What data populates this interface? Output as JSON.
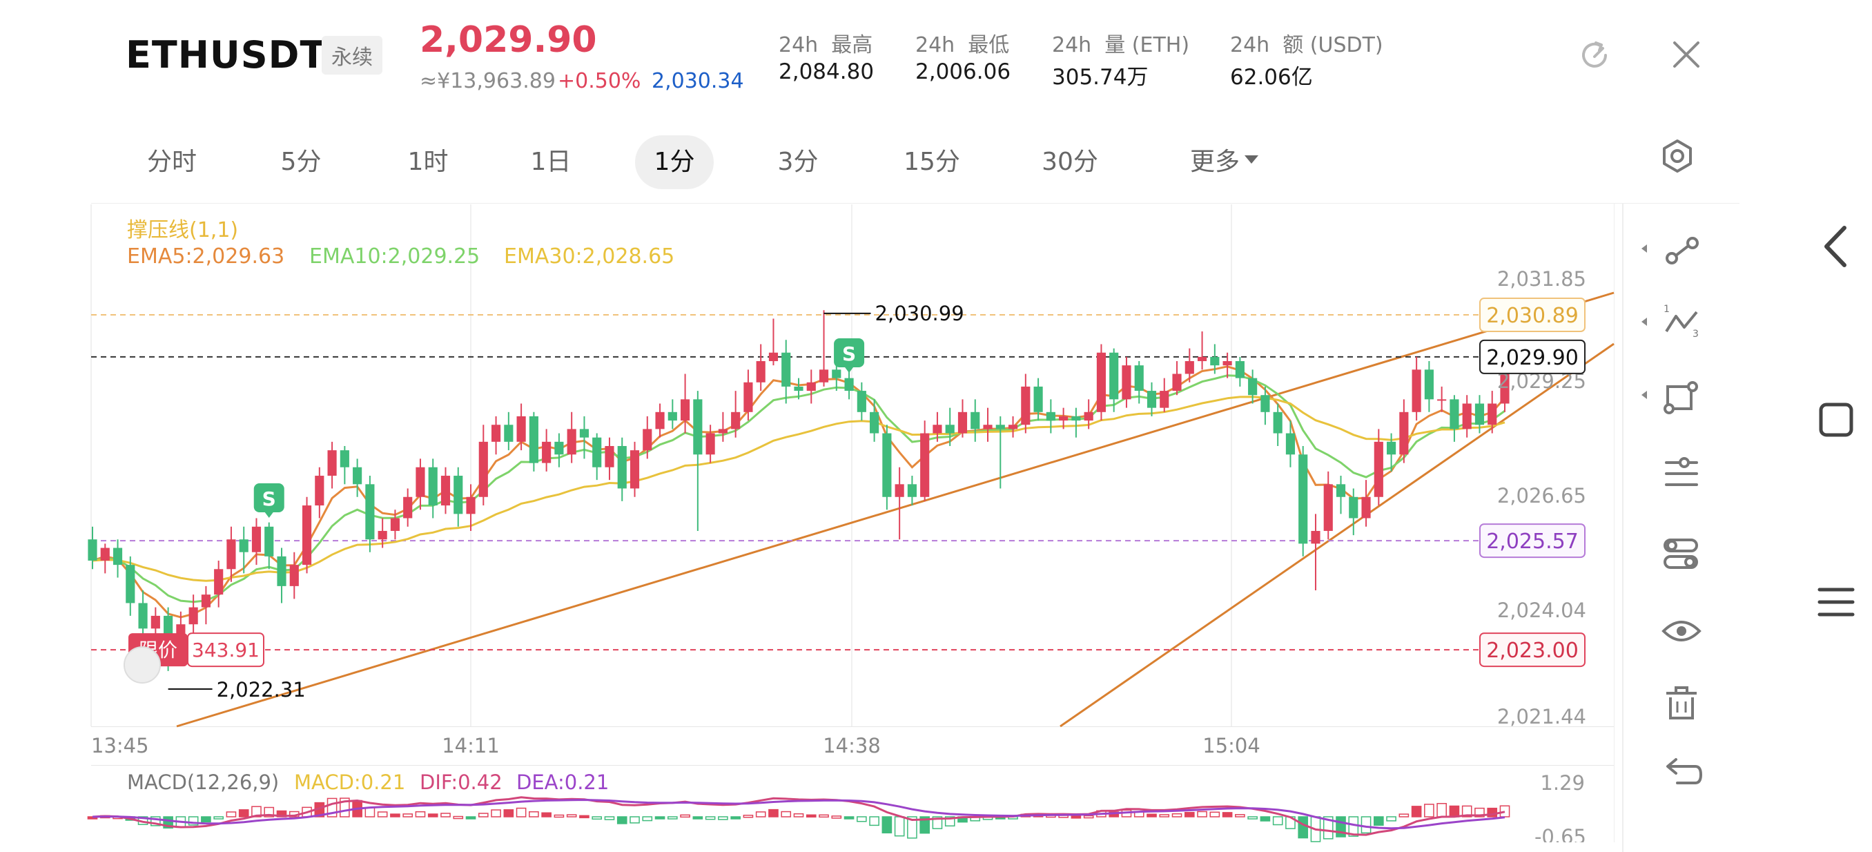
{
  "header": {
    "symbol": "ETHUSDT",
    "contract_type": "永续",
    "last_price": "2,029.90",
    "cny_price": "≈¥13,963.89",
    "change_pct": "+0.50%",
    "mark_price": "2,030.34",
    "stats": [
      {
        "label": "24h  最高",
        "value": "2,084.80"
      },
      {
        "label": "24h  最低",
        "value": "2,006.06"
      },
      {
        "label": "24h  量 (ETH)",
        "value": "305.74万"
      },
      {
        "label": "24h  额 (USDT)",
        "value": "62.06亿"
      }
    ]
  },
  "tabs": [
    {
      "label": "分时",
      "active": false
    },
    {
      "label": "5分",
      "active": false
    },
    {
      "label": "1时",
      "active": false
    },
    {
      "label": "1日",
      "active": false
    },
    {
      "label": "1分",
      "active": true
    },
    {
      "label": "3分",
      "active": false
    },
    {
      "label": "15分",
      "active": false
    },
    {
      "label": "30分",
      "active": false
    },
    {
      "label": "更多",
      "active": false
    }
  ],
  "indicators": {
    "support_resistance": "撑压线(1,1)",
    "ema5": "EMA5:2,029.63",
    "ema10": "EMA10:2,029.25",
    "ema30": "EMA30:2,028.65",
    "macd_params": "MACD(12,26,9)",
    "macd": "MACD:0.21",
    "dif": "DIF:0.42",
    "dea": "DEA:0.21"
  },
  "chart_data": {
    "type": "candlestick",
    "price_axis": [
      "2,031.85",
      "2,029.25",
      "2,026.65",
      "2,024.04",
      "2,021.44"
    ],
    "time_axis": [
      "13:45",
      "14:11",
      "14:38",
      "15:04"
    ],
    "macd_axis": [
      "1.29",
      "-0.65"
    ],
    "ylim": [
      2021.44,
      2031.85
    ],
    "price_tags": {
      "alert_high": "2,030.89",
      "last": "2,029.90",
      "alert_mid": "2,025.57",
      "limit_line": "2,023.00"
    },
    "annotations": {
      "high": "2,030.99",
      "low": "2,022.31",
      "signal": "S"
    },
    "limit_order": {
      "label": "限价",
      "qty": "343.91"
    },
    "candles": [
      [
        2025.6,
        2025.1,
        2025.9,
        2024.9
      ],
      [
        2025.1,
        2025.4,
        2025.5,
        2024.8
      ],
      [
        2025.4,
        2025.0,
        2025.6,
        2024.7
      ],
      [
        2025.0,
        2024.1,
        2025.2,
        2023.8
      ],
      [
        2024.1,
        2023.5,
        2024.4,
        2023.2
      ],
      [
        2023.5,
        2023.8,
        2024.0,
        2023.3
      ],
      [
        2023.8,
        2023.2,
        2024.0,
        2022.5
      ],
      [
        2023.2,
        2023.6,
        2023.9,
        2022.9
      ],
      [
        2023.6,
        2024.0,
        2024.3,
        2023.3
      ],
      [
        2024.0,
        2024.3,
        2024.5,
        2023.6
      ],
      [
        2024.3,
        2024.9,
        2025.1,
        2024.0
      ],
      [
        2024.9,
        2025.6,
        2025.9,
        2024.6
      ],
      [
        2025.6,
        2025.3,
        2025.9,
        2024.8
      ],
      [
        2025.3,
        2025.9,
        2026.1,
        2025.0
      ],
      [
        2025.9,
        2025.2,
        2026.0,
        2024.9
      ],
      [
        2025.2,
        2024.5,
        2025.4,
        2024.1
      ],
      [
        2024.5,
        2025.0,
        2025.3,
        2024.2
      ],
      [
        2025.0,
        2026.4,
        2026.6,
        2024.8
      ],
      [
        2026.4,
        2027.1,
        2027.3,
        2026.1
      ],
      [
        2027.1,
        2027.7,
        2027.9,
        2026.8
      ],
      [
        2027.7,
        2027.3,
        2027.8,
        2026.9
      ],
      [
        2027.3,
        2026.9,
        2027.5,
        2026.6
      ],
      [
        2026.9,
        2025.6,
        2027.1,
        2025.3
      ],
      [
        2025.6,
        2025.8,
        2026.1,
        2025.4
      ],
      [
        2025.8,
        2026.1,
        2026.3,
        2025.6
      ],
      [
        2026.1,
        2026.6,
        2026.8,
        2025.9
      ],
      [
        2026.6,
        2027.3,
        2027.5,
        2026.3
      ],
      [
        2027.3,
        2026.4,
        2027.5,
        2026.1
      ],
      [
        2026.4,
        2027.1,
        2027.3,
        2026.2
      ],
      [
        2027.1,
        2026.2,
        2027.3,
        2025.9
      ],
      [
        2026.2,
        2026.6,
        2026.9,
        2025.8
      ],
      [
        2026.6,
        2027.9,
        2028.3,
        2026.4
      ],
      [
        2027.9,
        2028.3,
        2028.5,
        2027.6
      ],
      [
        2028.3,
        2027.9,
        2028.6,
        2027.7
      ],
      [
        2027.9,
        2028.5,
        2028.8,
        2027.7
      ],
      [
        2028.5,
        2027.4,
        2028.6,
        2027.2
      ],
      [
        2027.4,
        2027.9,
        2028.2,
        2027.2
      ],
      [
        2027.9,
        2027.6,
        2028.1,
        2027.3
      ],
      [
        2027.6,
        2028.2,
        2028.6,
        2027.4
      ],
      [
        2028.2,
        2028.0,
        2028.5,
        2027.5
      ],
      [
        2028.0,
        2027.3,
        2028.1,
        2027.0
      ],
      [
        2027.3,
        2027.8,
        2028.0,
        2027.0
      ],
      [
        2027.8,
        2026.8,
        2028.0,
        2026.5
      ],
      [
        2026.8,
        2027.7,
        2027.9,
        2026.6
      ],
      [
        2027.7,
        2028.2,
        2028.5,
        2027.5
      ],
      [
        2028.2,
        2028.6,
        2028.8,
        2028.0
      ],
      [
        2028.6,
        2028.4,
        2028.9,
        2028.2
      ],
      [
        2028.4,
        2028.9,
        2029.5,
        2028.1
      ],
      [
        2028.9,
        2027.6,
        2029.1,
        2025.8
      ],
      [
        2027.6,
        2028.1,
        2028.3,
        2027.4
      ],
      [
        2028.1,
        2028.2,
        2028.6,
        2027.9
      ],
      [
        2028.2,
        2028.6,
        2029.1,
        2028.0
      ],
      [
        2028.6,
        2029.3,
        2029.6,
        2028.4
      ],
      [
        2029.3,
        2029.8,
        2030.2,
        2029.1
      ],
      [
        2029.8,
        2030.0,
        2030.8,
        2029.7
      ],
      [
        2030.0,
        2029.2,
        2030.3,
        2028.8
      ],
      [
        2029.2,
        2029.1,
        2029.4,
        2028.9
      ],
      [
        2029.1,
        2029.3,
        2029.6,
        2028.8
      ],
      [
        2029.3,
        2029.6,
        2031.0,
        2029.2
      ],
      [
        2029.6,
        2029.4,
        2030.0,
        2029.1
      ],
      [
        2029.4,
        2029.1,
        2029.6,
        2028.9
      ],
      [
        2029.1,
        2028.6,
        2029.3,
        2028.4
      ],
      [
        2028.6,
        2028.1,
        2028.9,
        2027.9
      ],
      [
        2028.1,
        2026.6,
        2028.3,
        2026.3
      ],
      [
        2026.6,
        2026.9,
        2027.3,
        2025.6
      ],
      [
        2026.9,
        2026.6,
        2027.1,
        2026.4
      ],
      [
        2026.6,
        2028.1,
        2028.4,
        2026.5
      ],
      [
        2028.1,
        2028.3,
        2028.6,
        2027.9
      ],
      [
        2028.3,
        2028.1,
        2028.7,
        2027.8
      ],
      [
        2028.1,
        2028.6,
        2028.9,
        2028.0
      ],
      [
        2028.6,
        2028.2,
        2028.9,
        2027.9
      ],
      [
        2028.2,
        2028.3,
        2028.7,
        2027.9
      ],
      [
        2028.3,
        2028.2,
        2028.5,
        2026.8
      ],
      [
        2028.2,
        2028.3,
        2028.5,
        2028.0
      ],
      [
        2028.3,
        2029.2,
        2029.5,
        2028.1
      ],
      [
        2029.2,
        2028.6,
        2029.4,
        2028.4
      ],
      [
        2028.6,
        2028.4,
        2028.9,
        2028.1
      ],
      [
        2028.4,
        2028.5,
        2028.7,
        2028.2
      ],
      [
        2028.5,
        2028.4,
        2028.7,
        2028.0
      ],
      [
        2028.4,
        2028.6,
        2028.9,
        2028.2
      ],
      [
        2028.6,
        2030.0,
        2030.2,
        2028.4
      ],
      [
        2030.0,
        2028.9,
        2030.1,
        2028.6
      ],
      [
        2028.9,
        2029.7,
        2029.9,
        2028.7
      ],
      [
        2029.7,
        2029.1,
        2029.8,
        2028.8
      ],
      [
        2029.1,
        2028.7,
        2029.3,
        2028.5
      ],
      [
        2028.7,
        2029.1,
        2029.4,
        2028.6
      ],
      [
        2029.1,
        2029.5,
        2029.8,
        2029.0
      ],
      [
        2029.5,
        2029.8,
        2030.1,
        2029.3
      ],
      [
        2029.8,
        2029.9,
        2030.5,
        2029.6
      ],
      [
        2029.9,
        2029.7,
        2030.2,
        2029.5
      ],
      [
        2029.7,
        2029.8,
        2030.0,
        2029.4
      ],
      [
        2029.8,
        2029.4,
        2029.9,
        2029.2
      ],
      [
        2029.4,
        2029.0,
        2029.6,
        2028.8
      ],
      [
        2029.0,
        2028.6,
        2029.2,
        2028.3
      ],
      [
        2028.6,
        2028.1,
        2028.8,
        2027.8
      ],
      [
        2028.1,
        2027.6,
        2028.4,
        2027.3
      ],
      [
        2027.6,
        2025.5,
        2027.8,
        2025.2
      ],
      [
        2025.5,
        2025.8,
        2026.2,
        2024.4
      ],
      [
        2025.8,
        2026.9,
        2027.2,
        2025.6
      ],
      [
        2026.9,
        2026.6,
        2027.1,
        2026.2
      ],
      [
        2026.6,
        2026.1,
        2026.8,
        2025.7
      ],
      [
        2026.1,
        2026.6,
        2027.0,
        2025.9
      ],
      [
        2026.6,
        2027.9,
        2028.2,
        2026.4
      ],
      [
        2027.9,
        2027.6,
        2028.1,
        2027.2
      ],
      [
        2027.6,
        2028.6,
        2028.9,
        2027.4
      ],
      [
        2028.6,
        2029.6,
        2029.9,
        2028.4
      ],
      [
        2029.6,
        2028.9,
        2029.8,
        2028.6
      ],
      [
        2028.9,
        2028.9,
        2029.2,
        2028.6
      ],
      [
        2028.9,
        2028.2,
        2029.0,
        2027.9
      ],
      [
        2028.2,
        2028.8,
        2029.0,
        2028.0
      ],
      [
        2028.8,
        2028.3,
        2029.0,
        2028.1
      ],
      [
        2028.3,
        2028.8,
        2029.1,
        2028.1
      ],
      [
        2028.8,
        2029.6,
        2029.8,
        2028.6
      ]
    ]
  },
  "toolbar": {
    "tools": [
      "line-segment-icon",
      "fibonacci-icon",
      "shape-icon",
      "settings-sliders-icon",
      "path-icon",
      "visibility-icon",
      "delete-icon",
      "undo-icon"
    ]
  },
  "colors": {
    "up": "#e0435b",
    "down": "#3fbb7c",
    "ema5": "#e5893c",
    "ema10": "#7ed36a",
    "ema30": "#e8c23c",
    "trendline": "#d98030",
    "alert": "#9b44c9"
  }
}
